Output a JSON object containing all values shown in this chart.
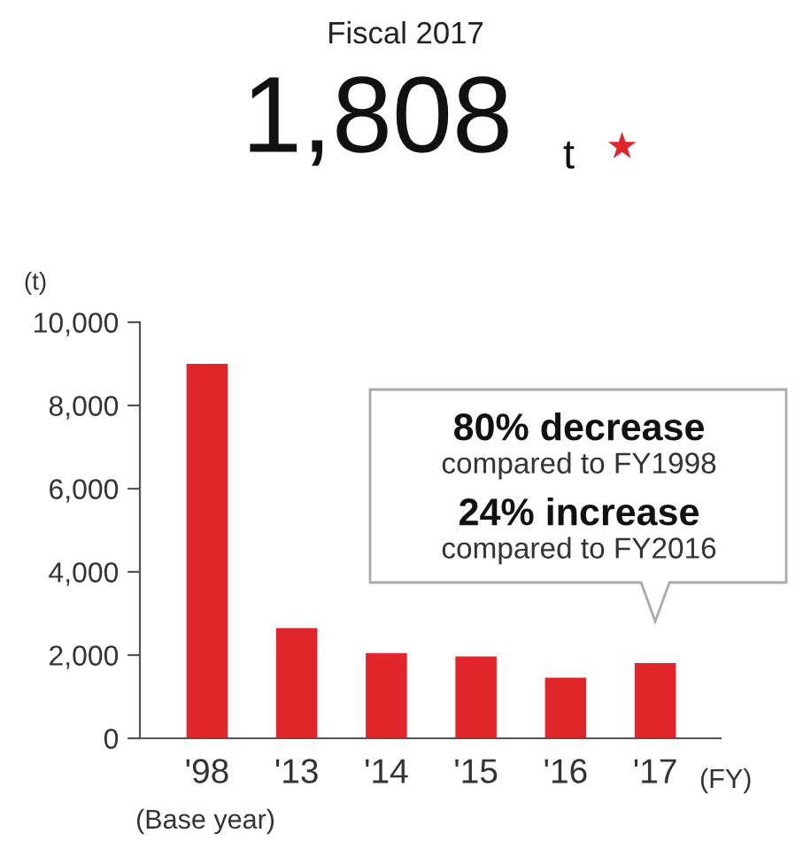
{
  "chart_data": {
    "type": "bar",
    "title": "Fiscal 2017",
    "subtitle": "1,808",
    "ylabel": "(t)",
    "xlabel": "(FY)",
    "categories": [
      "'98",
      "'13",
      "'14",
      "'15",
      "'16",
      "'17"
    ],
    "values": [
      9000,
      2650,
      2050,
      1970,
      1460,
      1810
    ],
    "color": "#e0262a",
    "ylim": [
      0,
      10000
    ],
    "yticks": [
      {
        "value": 0,
        "label": "0"
      },
      {
        "value": 2000,
        "label": "2,000"
      },
      {
        "value": 4000,
        "label": "4,000"
      },
      {
        "value": 6000,
        "label": "6,000"
      },
      {
        "value": 8000,
        "label": "8,000"
      },
      {
        "value": 10000,
        "label": "10,000"
      }
    ],
    "grid": false,
    "annotations": [
      "t",
      "★",
      "(Base year)",
      "80% decrease",
      "compared to FY1998",
      "24% increase",
      "compared to FY2016"
    ]
  }
}
